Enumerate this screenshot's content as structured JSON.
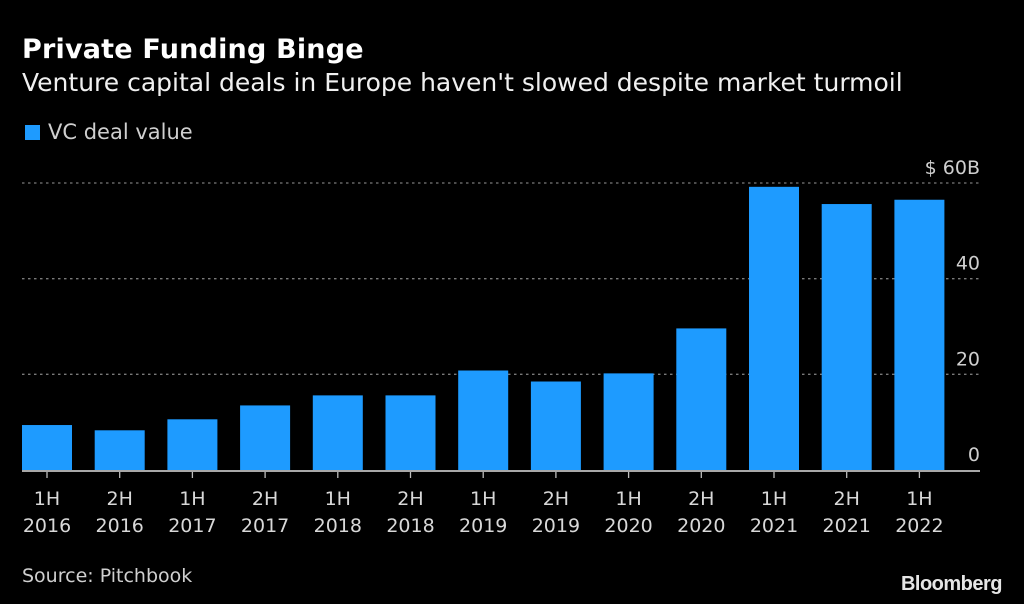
{
  "header": {
    "title": "Private Funding Binge",
    "subtitle": "Venture capital deals in Europe haven't slowed despite market turmoil"
  },
  "footer": {
    "source": "Source: Pitchbook",
    "brand": "Bloomberg"
  },
  "chart_data": {
    "type": "bar",
    "title": "Private Funding Binge",
    "subtitle": "Venture capital deals in Europe haven't slowed despite market turmoil",
    "legend": [
      "VC deal value"
    ],
    "legend_position": "top-left",
    "categories": [
      [
        "1H",
        "2016"
      ],
      [
        "2H",
        "2016"
      ],
      [
        "1H",
        "2017"
      ],
      [
        "2H",
        "2017"
      ],
      [
        "1H",
        "2018"
      ],
      [
        "2H",
        "2018"
      ],
      [
        "1H",
        "2019"
      ],
      [
        "2H",
        "2019"
      ],
      [
        "1H",
        "2020"
      ],
      [
        "2H",
        "2020"
      ],
      [
        "1H",
        "2021"
      ],
      [
        "2H",
        "2021"
      ],
      [
        "1H",
        "2022"
      ]
    ],
    "series": [
      {
        "name": "VC deal value",
        "color": "#1e9bff",
        "values": [
          9.4,
          8.3,
          10.6,
          13.5,
          15.6,
          15.6,
          20.8,
          18.5,
          20.2,
          29.6,
          59.2,
          55.6,
          56.5
        ]
      }
    ],
    "xlabel": "",
    "ylabel": "",
    "ylim": [
      0,
      60
    ],
    "yticks": [
      {
        "value": 0,
        "label": "0"
      },
      {
        "value": 20,
        "label": "20"
      },
      {
        "value": 40,
        "label": "40"
      },
      {
        "value": 60,
        "label": "$ 60B"
      }
    ],
    "grid": true,
    "y_axis_side": "right",
    "unit": "USD billions"
  }
}
